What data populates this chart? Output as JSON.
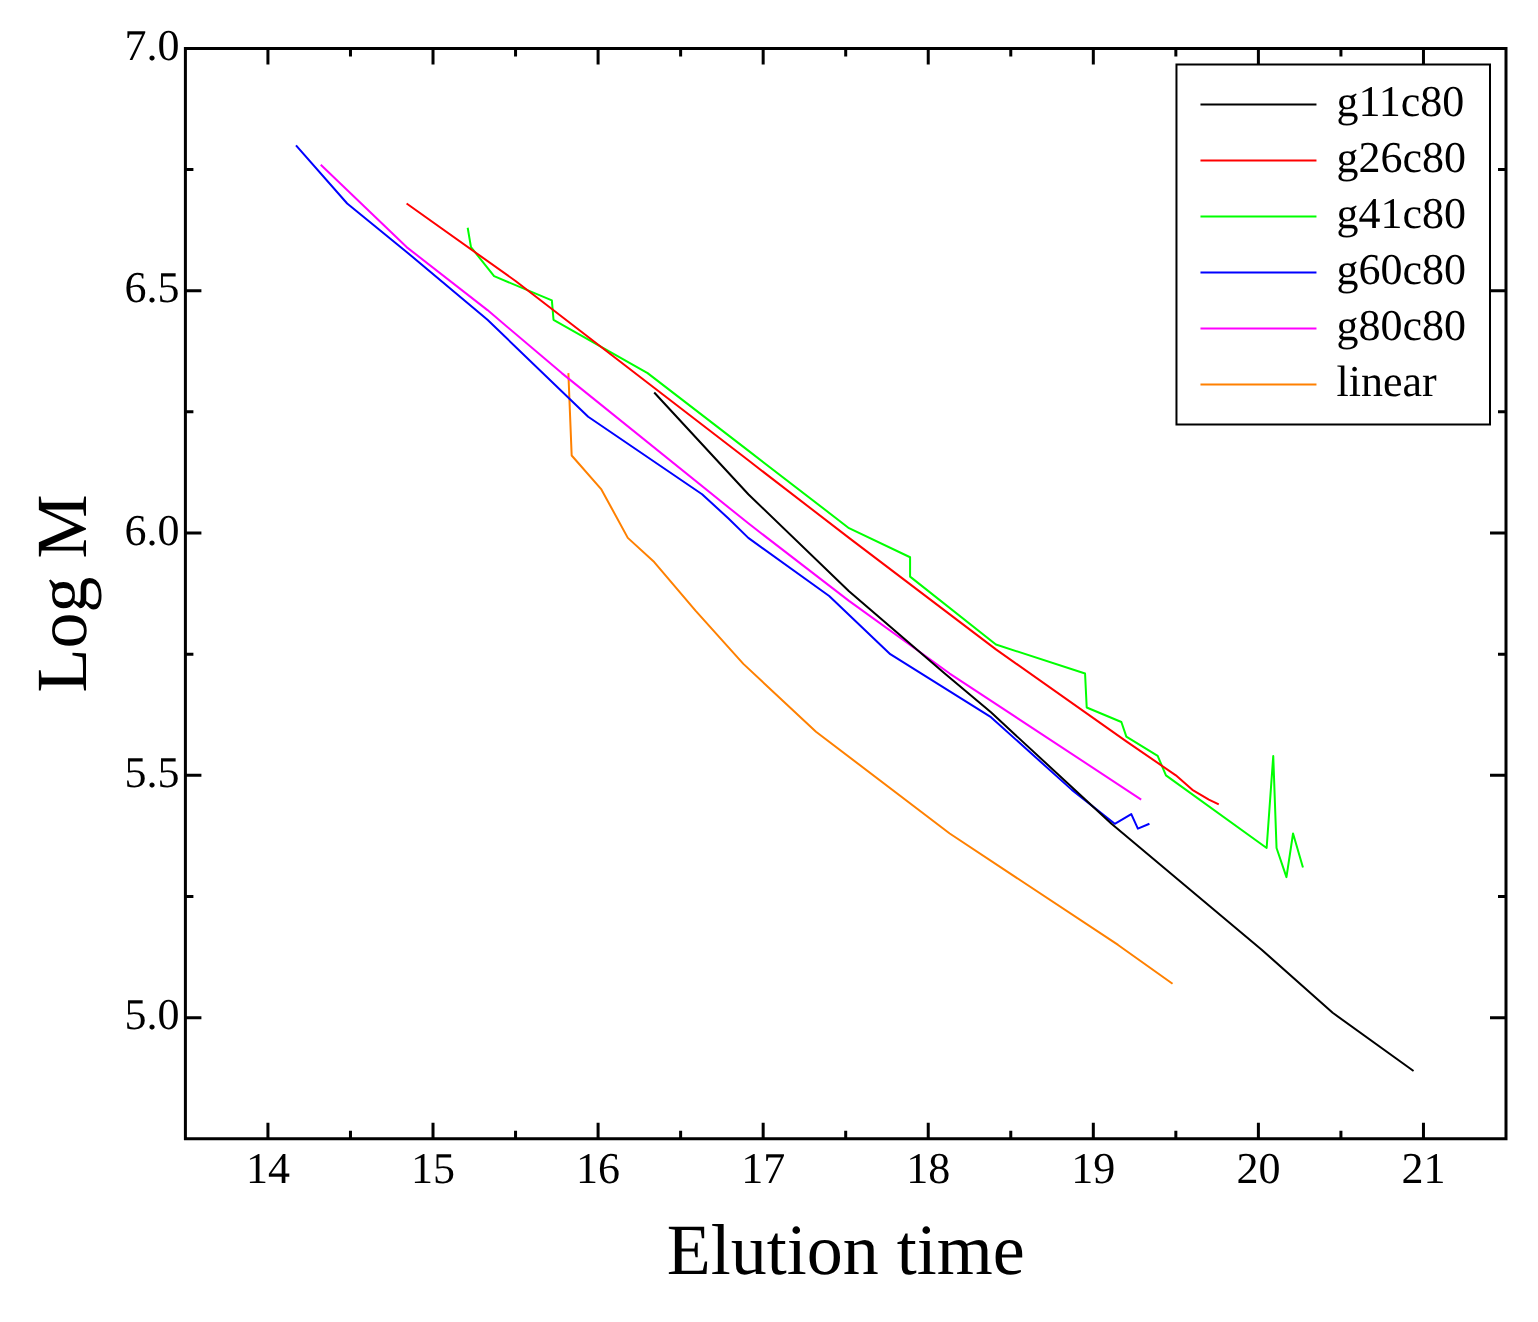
{
  "chart_data": {
    "type": "line",
    "xlabel": "Elution time",
    "ylabel": "Log M",
    "xlim": [
      13.5,
      21.5
    ],
    "ylim": [
      4.75,
      7.0
    ],
    "xticks": [
      14,
      {
        "value": 14.5,
        "label": null
      },
      15,
      {
        "value": 15.5,
        "label": null
      },
      16,
      {
        "value": 16.5,
        "label": null
      },
      17,
      {
        "value": 17.5,
        "label": null
      },
      18,
      {
        "value": 18.5,
        "label": null
      },
      19,
      {
        "value": 19.5,
        "label": null
      },
      20,
      {
        "value": 20.5,
        "label": null
      },
      21
    ],
    "yticks": [
      {
        "value": 5.0,
        "label": "5.0"
      },
      {
        "value": 5.25,
        "label": null
      },
      {
        "value": 5.5,
        "label": "5.5"
      },
      {
        "value": 5.75,
        "label": null
      },
      {
        "value": 6.0,
        "label": "6.0"
      },
      {
        "value": 6.25,
        "label": null
      },
      {
        "value": 6.5,
        "label": "6.5"
      },
      {
        "value": 6.75,
        "label": null
      },
      {
        "value": 7.0,
        "label": "7.0"
      }
    ],
    "legend": "top right",
    "grid": false,
    "marker": "none",
    "line_style": "solid",
    "series": [
      {
        "name": "g11c80",
        "color": "#000000",
        "x": [
          16.34,
          16.91,
          17.52,
          18.1,
          18.38,
          19.11,
          20.02,
          20.45,
          20.94
        ],
        "values": [
          6.29,
          6.08,
          5.88,
          5.71,
          5.63,
          5.4,
          5.14,
          5.01,
          4.89
        ]
      },
      {
        "name": "g26c80",
        "color": "#ff0000",
        "x": [
          14.84,
          15.5,
          16.3,
          16.91,
          17.52,
          18.41,
          19.2,
          19.5,
          19.6,
          19.7,
          19.76
        ],
        "values": [
          6.68,
          6.52,
          6.31,
          6.15,
          5.99,
          5.76,
          5.57,
          5.5,
          5.47,
          5.45,
          5.44
        ]
      },
      {
        "name": "g41c80",
        "color": "#00ff00",
        "x": [
          15.21,
          15.23,
          15.37,
          15.72,
          15.73,
          16.3,
          16.91,
          17.52,
          17.89,
          17.89,
          18.41,
          18.95,
          18.96,
          19.17,
          19.2,
          19.39,
          19.44,
          20.05,
          20.09,
          20.11,
          20.17,
          20.21,
          20.27
        ],
        "values": [
          6.63,
          6.59,
          6.53,
          6.48,
          6.44,
          6.33,
          6.17,
          6.01,
          5.95,
          5.91,
          5.77,
          5.71,
          5.64,
          5.61,
          5.58,
          5.54,
          5.5,
          5.35,
          5.54,
          5.35,
          5.29,
          5.38,
          5.31
        ]
      },
      {
        "name": "g60c80",
        "color": "#0000ff",
        "x": [
          14.17,
          14.48,
          14.84,
          15.33,
          15.94,
          16.63,
          16.79,
          16.91,
          17.4,
          17.77,
          18.38,
          18.87,
          19.13,
          19.23,
          19.27,
          19.34
        ],
        "values": [
          6.8,
          6.68,
          6.58,
          6.44,
          6.24,
          6.08,
          6.03,
          5.99,
          5.87,
          5.75,
          5.62,
          5.47,
          5.4,
          5.42,
          5.39,
          5.4
        ]
      },
      {
        "name": "g80c80",
        "color": "#ff00ff",
        "x": [
          14.32,
          14.84,
          15.33,
          15.78,
          16.91,
          17.52,
          18.13,
          19.29
        ],
        "values": [
          6.76,
          6.59,
          6.46,
          6.33,
          6.02,
          5.86,
          5.71,
          5.45
        ]
      },
      {
        "name": "linear",
        "color": "#ff8000",
        "x": [
          15.82,
          15.84,
          16.02,
          16.18,
          16.34,
          16.59,
          16.88,
          17.32,
          18.13,
          19.15,
          19.48
        ],
        "values": [
          6.33,
          6.16,
          6.09,
          5.99,
          5.94,
          5.84,
          5.73,
          5.59,
          5.38,
          5.15,
          5.07
        ]
      }
    ]
  }
}
